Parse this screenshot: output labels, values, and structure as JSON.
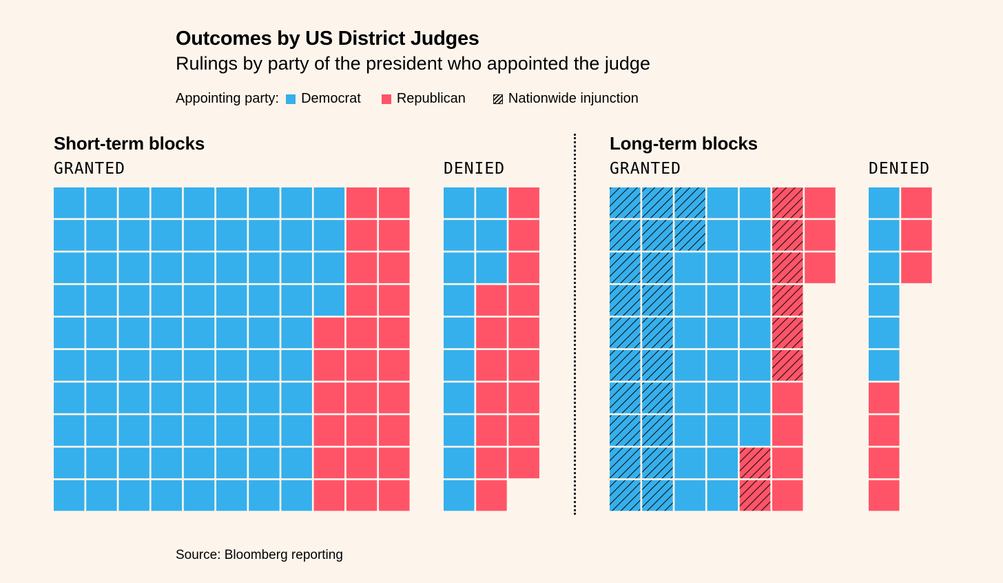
{
  "title": "Outcomes by US District Judges",
  "subtitle": "Rulings by party of the president who appointed the judge",
  "legend": {
    "label": "Appointing party:",
    "democrat": "Democrat",
    "republican": "Republican",
    "nationwide": "Nationwide injunction"
  },
  "colors": {
    "democrat": "#35b0ec",
    "republican": "#ff5468",
    "hatch": "#111111",
    "background": "#fdf5ec"
  },
  "source": "Source: Bloomberg reporting",
  "chart_data": [
    {
      "type": "waffle",
      "title": "Short-term blocks",
      "groups": [
        {
          "label": "GRANTED",
          "columns": [
            {
              "cells": [
                {
                  "party": "D",
                  "count": 10
                }
              ]
            },
            {
              "cells": [
                {
                  "party": "D",
                  "count": 10
                }
              ]
            },
            {
              "cells": [
                {
                  "party": "D",
                  "count": 10
                }
              ]
            },
            {
              "cells": [
                {
                  "party": "D",
                  "count": 10
                }
              ]
            },
            {
              "cells": [
                {
                  "party": "D",
                  "count": 10
                }
              ]
            },
            {
              "cells": [
                {
                  "party": "D",
                  "count": 10
                }
              ]
            },
            {
              "cells": [
                {
                  "party": "D",
                  "count": 10
                }
              ]
            },
            {
              "cells": [
                {
                  "party": "D",
                  "count": 10
                }
              ]
            },
            {
              "cells": [
                {
                  "party": "D",
                  "count": 4
                },
                {
                  "party": "R",
                  "count": 6
                }
              ]
            },
            {
              "cells": [
                {
                  "party": "R",
                  "count": 10
                }
              ]
            },
            {
              "cells": [
                {
                  "party": "R",
                  "count": 10
                }
              ]
            }
          ]
        },
        {
          "label": "DENIED",
          "columns": [
            {
              "cells": [
                {
                  "party": "D",
                  "count": 10
                }
              ]
            },
            {
              "cells": [
                {
                  "party": "D",
                  "count": 3
                },
                {
                  "party": "R",
                  "count": 7
                }
              ]
            },
            {
              "cells": [
                {
                  "party": "R",
                  "count": 9
                }
              ]
            }
          ]
        }
      ]
    },
    {
      "type": "waffle",
      "title": "Long-term blocks",
      "groups": [
        {
          "label": "GRANTED",
          "columns": [
            {
              "cells": [
                {
                  "party": "D",
                  "nationwide": true,
                  "count": 10
                }
              ]
            },
            {
              "cells": [
                {
                  "party": "D",
                  "nationwide": true,
                  "count": 10
                }
              ]
            },
            {
              "cells": [
                {
                  "party": "D",
                  "nationwide": true,
                  "count": 2
                },
                {
                  "party": "D",
                  "count": 8
                }
              ]
            },
            {
              "cells": [
                {
                  "party": "D",
                  "count": 10
                }
              ]
            },
            {
              "cells": [
                {
                  "party": "D",
                  "count": 8
                },
                {
                  "party": "R",
                  "nationwide": true,
                  "count": 2
                }
              ]
            },
            {
              "cells": [
                {
                  "party": "R",
                  "nationwide": true,
                  "count": 6
                },
                {
                  "party": "R",
                  "count": 4
                }
              ]
            },
            {
              "cells": [
                {
                  "party": "R",
                  "count": 3
                }
              ]
            }
          ]
        },
        {
          "label": "DENIED",
          "columns": [
            {
              "cells": [
                {
                  "party": "D",
                  "count": 6
                },
                {
                  "party": "R",
                  "count": 4
                }
              ]
            },
            {
              "cells": [
                {
                  "party": "R",
                  "count": 3
                }
              ]
            }
          ]
        }
      ]
    }
  ]
}
